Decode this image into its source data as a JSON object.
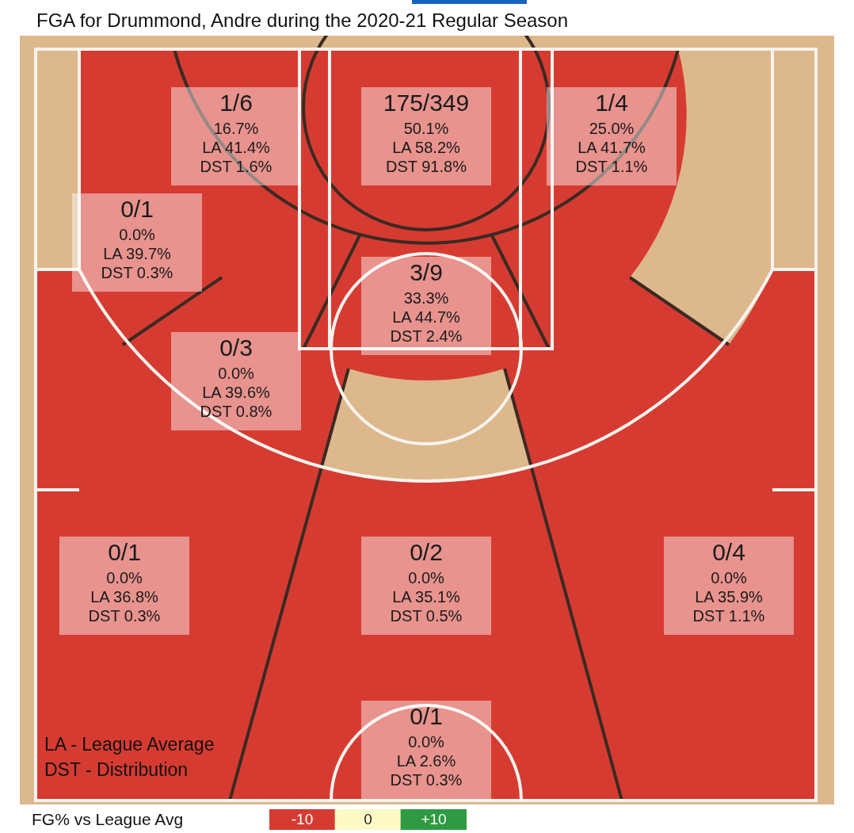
{
  "chart_data": {
    "type": "other",
    "title": "FGA for Drummond, Andre during the 2020-21 Regular Season",
    "categories": [
      "1/6",
      "175/349",
      "1/4",
      "0/1",
      "3/9",
      "0/3",
      "0/1",
      "0/2",
      "0/4",
      "0/1"
    ],
    "values": [
      16.7,
      50.1,
      25.0,
      0.0,
      33.3,
      0.0,
      0.0,
      0.0,
      0.0,
      0.0
    ],
    "annotations": [
      "LA 41.4%\nDST 1.6%",
      "LA 58.2%\nDST 91.8%",
      "LA 41.7%\nDST 1.1%",
      "LA 39.7%\nDST 0.3%",
      "LA 44.7%\nDST 2.4%",
      "LA 39.6%\nDST 0.8%",
      "LA 36.8%\nDST 0.3%",
      "LA 35.1%\nDST 0.5%",
      "LA 35.9%\nDST 1.1%",
      "LA 2.6%\nDST 0.3%",
      "LA - League Average",
      "DST - Distribution",
      "-10",
      "0",
      "+10"
    ],
    "value_labels": [
      "16.7%",
      "50.1%",
      "25.0%",
      "0.0%",
      "33.3%",
      "0.0%",
      "0.0%",
      "0.0%",
      "0.0%",
      "0.0%"
    ],
    "clabel": "FG% vs League Avg"
  }
}
